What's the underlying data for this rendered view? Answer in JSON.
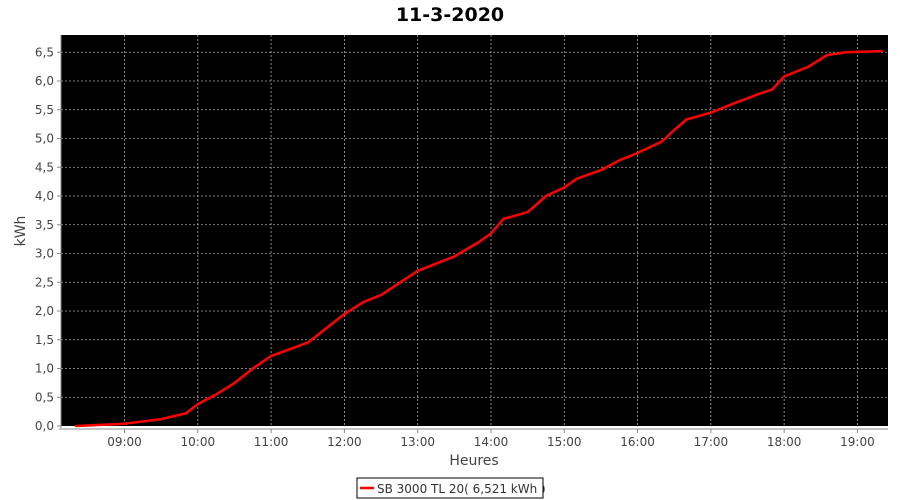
{
  "chart_data": {
    "type": "line",
    "title": "11-3-2020",
    "xlabel": "Heures",
    "ylabel": "kWh",
    "xlim": [
      "08:08",
      "19:25"
    ],
    "ylim": [
      0,
      6.8
    ],
    "x_ticks": [
      "09:00",
      "10:00",
      "11:00",
      "12:00",
      "13:00",
      "14:00",
      "15:00",
      "16:00",
      "17:00",
      "18:00",
      "19:00"
    ],
    "y_ticks": [
      "0,0",
      "0,5",
      "1,0",
      "1,5",
      "2,0",
      "2,5",
      "3,0",
      "3,5",
      "4,0",
      "4,5",
      "5,0",
      "5,5",
      "6,0",
      "6,5"
    ],
    "grid": true,
    "background": "#000000",
    "legend_position": "bottom",
    "series": [
      {
        "name": "SB 3000 TL 20( 6,521 kWh )",
        "color": "#ff0000",
        "x": [
          "08:20",
          "09:00",
          "09:30",
          "09:50",
          "10:00",
          "10:15",
          "10:30",
          "10:45",
          "11:00",
          "11:30",
          "12:00",
          "12:15",
          "12:30",
          "13:00",
          "13:30",
          "13:50",
          "14:00",
          "14:10",
          "14:30",
          "14:45",
          "15:00",
          "15:10",
          "15:30",
          "15:45",
          "16:00",
          "16:20",
          "16:30",
          "16:40",
          "17:00",
          "17:20",
          "17:40",
          "17:50",
          "18:00",
          "18:20",
          "18:35",
          "18:50",
          "19:20"
        ],
        "y": [
          0.0,
          0.04,
          0.12,
          0.22,
          0.38,
          0.55,
          0.75,
          1.0,
          1.22,
          1.45,
          1.95,
          2.15,
          2.28,
          2.7,
          2.95,
          3.2,
          3.35,
          3.6,
          3.72,
          4.0,
          4.15,
          4.3,
          4.45,
          4.62,
          4.75,
          4.95,
          5.15,
          5.33,
          5.45,
          5.62,
          5.78,
          5.85,
          6.08,
          6.25,
          6.45,
          6.5,
          6.52
        ]
      }
    ]
  }
}
